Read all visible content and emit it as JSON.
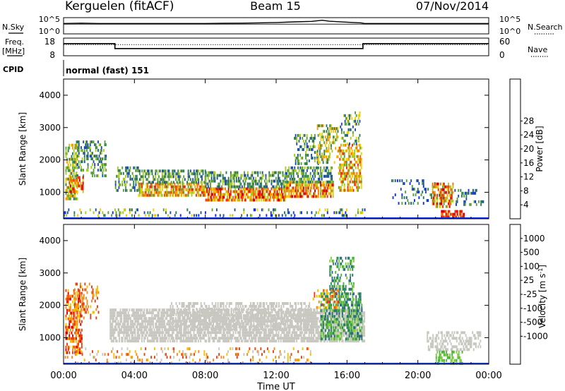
{
  "header": {
    "station": "Kerguelen (fitACF)",
    "beam": "Beam 15",
    "date": "07/Nov/2014"
  },
  "panels": {
    "nsky_label": "N.Sky",
    "nsearch_label": "N.Search",
    "noise_ticks": [
      "10^5",
      "10^0"
    ],
    "freq_label": "Freq.",
    "freq_units": "[MHz]",
    "nave_label": "Nave",
    "cpid_label": "CPID",
    "cpid_text": "normal (fast) 151",
    "colors": {
      "line": "#000000"
    }
  },
  "chart_data": [
    {
      "type": "line",
      "name": "noise",
      "x_range_hours": [
        0,
        24
      ],
      "ylim_log10": [
        0,
        5
      ],
      "series": [
        {
          "name": "N.Sky",
          "x": [
            0,
            1,
            2,
            4,
            6,
            8,
            9,
            10,
            11,
            12,
            13,
            14,
            14.6,
            15,
            16,
            16.8,
            17,
            18,
            20,
            22,
            24
          ],
          "y": [
            3.2,
            3.3,
            3.2,
            3.2,
            3.2,
            3.2,
            3.25,
            3.3,
            3.4,
            3.5,
            3.7,
            3.85,
            4.2,
            3.9,
            3.6,
            3.4,
            3.2,
            3.2,
            3.2,
            3.2,
            3.2
          ]
        },
        {
          "name": "N.Search",
          "x": [
            0,
            24
          ],
          "y": [
            3.0,
            3.0
          ]
        }
      ]
    },
    {
      "type": "line",
      "name": "frequency",
      "x_range_hours": [
        0,
        24
      ],
      "ylim_left": [
        8,
        18
      ],
      "left_ticks": [
        "18",
        "8"
      ],
      "ylim_right": [
        0,
        60
      ],
      "right_ticks": [
        "60",
        "0"
      ],
      "series": [
        {
          "name": "Freq",
          "x": [
            0,
            2.9,
            2.9,
            16.9,
            16.9,
            24
          ],
          "y": [
            14.9,
            14.9,
            12.1,
            12.1,
            14.9,
            14.9
          ]
        },
        {
          "name": "Nave",
          "x": [
            0,
            24
          ],
          "y": [
            38,
            38
          ]
        }
      ]
    },
    {
      "type": "heatmap",
      "name": "power",
      "x": {
        "min": 0,
        "max": 24,
        "ticks": [
          0,
          4,
          8,
          12,
          16,
          20,
          24
        ]
      },
      "y": {
        "label": "Slant Range [km]",
        "min": 180,
        "max": 4500,
        "ticks": [
          1000,
          2000,
          3000,
          4000
        ]
      },
      "colorbar": {
        "label": "Power [dB]",
        "ticks": [
          "4",
          "8",
          "12",
          "16",
          "20",
          "24",
          "28"
        ],
        "colors": [
          "#1030e8",
          "#1f4fa8",
          "#2d7a5a",
          "#5aa040",
          "#a8cc20",
          "#f0d000",
          "#f5a000",
          "#f07000",
          "#e63010",
          "#d40000"
        ]
      },
      "blobs": [
        {
          "t": [
            0.1,
            0.8
          ],
          "r": [
            800,
            2500
          ],
          "lvl": [
            2,
            6
          ],
          "d": 0.55
        },
        {
          "t": [
            0.7,
            2.4
          ],
          "r": [
            1500,
            2600
          ],
          "lvl": [
            1,
            4
          ],
          "d": 0.4
        },
        {
          "t": [
            0.3,
            1.1
          ],
          "r": [
            1000,
            1500
          ],
          "lvl": [
            4,
            9
          ],
          "d": 0.65
        },
        {
          "t": [
            2.9,
            4.2
          ],
          "r": [
            1100,
            1800
          ],
          "lvl": [
            1,
            4
          ],
          "d": 0.45
        },
        {
          "t": [
            4.2,
            8.0
          ],
          "r": [
            900,
            1300
          ],
          "lvl": [
            3,
            8
          ],
          "d": 0.7
        },
        {
          "t": [
            4.2,
            8.0
          ],
          "r": [
            1300,
            1700
          ],
          "lvl": [
            1,
            4
          ],
          "d": 0.55
        },
        {
          "t": [
            8.0,
            12.5
          ],
          "r": [
            800,
            1150
          ],
          "lvl": [
            4,
            9
          ],
          "d": 0.75
        },
        {
          "t": [
            8.0,
            12.5
          ],
          "r": [
            1150,
            1650
          ],
          "lvl": [
            1,
            4
          ],
          "d": 0.55
        },
        {
          "t": [
            12.5,
            15.2
          ],
          "r": [
            900,
            1350
          ],
          "lvl": [
            4,
            9
          ],
          "d": 0.75
        },
        {
          "t": [
            12.5,
            15.2
          ],
          "r": [
            1350,
            1800
          ],
          "lvl": [
            1,
            4
          ],
          "d": 0.5
        },
        {
          "t": [
            13.0,
            14.4
          ],
          "r": [
            1900,
            2800
          ],
          "lvl": [
            1,
            4
          ],
          "d": 0.3
        },
        {
          "t": [
            14.3,
            15.5
          ],
          "r": [
            1900,
            3100
          ],
          "lvl": [
            2,
            6
          ],
          "d": 0.45
        },
        {
          "t": [
            15.5,
            16.8
          ],
          "r": [
            1100,
            2500
          ],
          "lvl": [
            3,
            8
          ],
          "d": 0.55
        },
        {
          "t": [
            15.6,
            16.7
          ],
          "r": [
            2500,
            3500
          ],
          "lvl": [
            1,
            5
          ],
          "d": 0.3
        },
        {
          "t": [
            0.0,
            17.0
          ],
          "r": [
            250,
            500
          ],
          "lvl": [
            0,
            5
          ],
          "d": 0.18
        },
        {
          "t": [
            18.5,
            21.0
          ],
          "r": [
            700,
            1400
          ],
          "lvl": [
            0,
            3
          ],
          "d": 0.15
        },
        {
          "t": [
            20.8,
            22.0
          ],
          "r": [
            600,
            1300
          ],
          "lvl": [
            3,
            9
          ],
          "d": 0.6
        },
        {
          "t": [
            21.3,
            22.6
          ],
          "r": [
            220,
            450
          ],
          "lvl": [
            7,
            9
          ],
          "d": 0.75
        },
        {
          "t": [
            22.0,
            23.7
          ],
          "r": [
            600,
            1100
          ],
          "lvl": [
            0,
            3
          ],
          "d": 0.25
        }
      ]
    },
    {
      "type": "heatmap",
      "name": "velocity",
      "x": {
        "min": 0,
        "max": 24,
        "ticks": [
          0,
          4,
          8,
          12,
          16,
          20,
          24
        ],
        "label": "Time UT",
        "tick_labels": [
          "00:00",
          "04:00",
          "08:00",
          "12:00",
          "16:00",
          "20:00",
          "00:00"
        ]
      },
      "y": {
        "label": "Slant Range [km]",
        "min": 180,
        "max": 4500,
        "ticks": [
          1000,
          2000,
          3000,
          4000
        ]
      },
      "colorbar": {
        "label": "Velocity [m s",
        "label_sup": "-1",
        "label_end": "]",
        "ticks": [
          "1000",
          "500",
          "100",
          "25",
          "-25",
          "-100",
          "-500",
          "-1000"
        ],
        "colors": [
          "#1f3fc0",
          "#2d6a8a",
          "#2f8a55",
          "#4ab53a",
          "#80cc40",
          "#c8c8c0",
          "#f5c000",
          "#f08c20",
          "#e84010",
          "#d40000"
        ]
      },
      "blobs": [
        {
          "t": [
            0.1,
            1.0
          ],
          "r": [
            500,
            2500
          ],
          "lvl": [
            6,
            9
          ],
          "d": 0.55
        },
        {
          "t": [
            0.6,
            2.0
          ],
          "r": [
            1600,
            2700
          ],
          "lvl": [
            6,
            8
          ],
          "d": 0.35
        },
        {
          "t": [
            2.6,
            17.0
          ],
          "r": [
            900,
            1900
          ],
          "lvl": [
            5,
            5
          ],
          "d": 0.75
        },
        {
          "t": [
            6.0,
            14.0
          ],
          "r": [
            1300,
            2100
          ],
          "lvl": [
            5,
            5
          ],
          "d": 0.45
        },
        {
          "t": [
            0.0,
            14.0
          ],
          "r": [
            250,
            700
          ],
          "lvl": [
            5,
            8
          ],
          "d": 0.15
        },
        {
          "t": [
            14.5,
            16.8
          ],
          "r": [
            1000,
            2400
          ],
          "lvl": [
            1,
            4
          ],
          "d": 0.55
        },
        {
          "t": [
            15.0,
            16.4
          ],
          "r": [
            2400,
            3500
          ],
          "lvl": [
            1,
            4
          ],
          "d": 0.35
        },
        {
          "t": [
            14.0,
            15.5
          ],
          "r": [
            1900,
            2500
          ],
          "lvl": [
            6,
            8
          ],
          "d": 0.3
        },
        {
          "t": [
            20.5,
            23.5
          ],
          "r": [
            600,
            1200
          ],
          "lvl": [
            5,
            5
          ],
          "d": 0.45
        },
        {
          "t": [
            21.0,
            22.5
          ],
          "r": [
            250,
            600
          ],
          "lvl": [
            3,
            4
          ],
          "d": 0.5
        }
      ]
    }
  ]
}
